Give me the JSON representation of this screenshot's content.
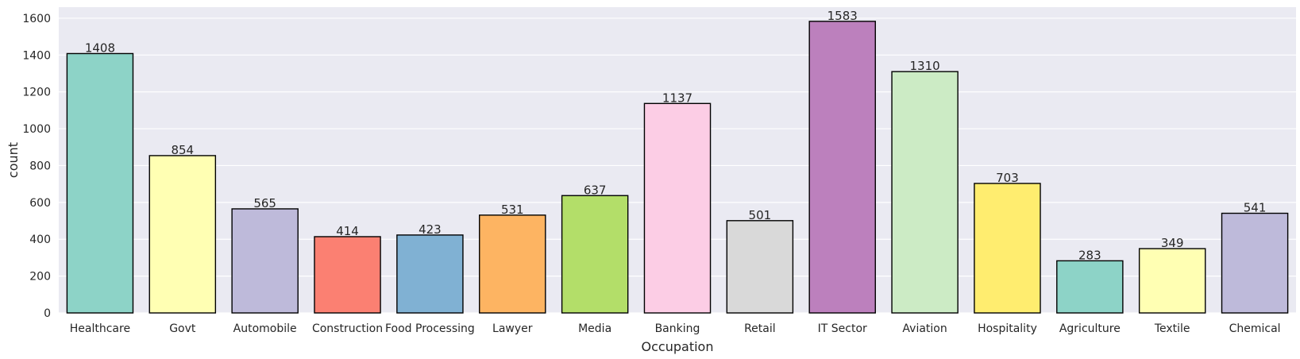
{
  "chart_data": {
    "type": "bar",
    "title": "",
    "xlabel": "Occupation",
    "ylabel": "count",
    "ylim": [
      0,
      1660
    ],
    "yticks": [
      0,
      200,
      400,
      600,
      800,
      1000,
      1200,
      1400,
      1600
    ],
    "grid": true,
    "legend": "none",
    "categories": [
      "Healthcare",
      "Govt",
      "Automobile",
      "Construction",
      "Food Processing",
      "Lawyer",
      "Media",
      "Banking",
      "Retail",
      "IT Sector",
      "Aviation",
      "Hospitality",
      "Agriculture",
      "Textile",
      "Chemical"
    ],
    "values": [
      1408,
      854,
      565,
      414,
      423,
      531,
      637,
      1137,
      501,
      1583,
      1310,
      703,
      283,
      349,
      541
    ],
    "colors": [
      "#8dd3c7",
      "#ffffb3",
      "#bebada",
      "#fb8072",
      "#80b1d3",
      "#fdb462",
      "#b3de69",
      "#fccde5",
      "#d9d9d9",
      "#bc80bd",
      "#ccebc5",
      "#ffed6f",
      "#8dd3c7",
      "#ffffb3",
      "#bebada"
    ],
    "background": "#eaeaf2",
    "bar_edge_color": "#000000"
  }
}
